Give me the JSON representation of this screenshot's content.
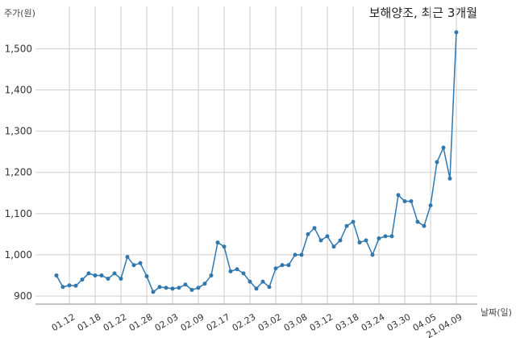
{
  "chart_data": {
    "type": "line",
    "title": "보해양조, 최근 3개월",
    "ylabel": "주가(원)",
    "xlabel": "날짜(일)",
    "ylim": [
      890,
      1580
    ],
    "yticks": [
      900,
      1000,
      1100,
      1200,
      1300,
      1400,
      1500
    ],
    "ytick_labels": [
      "900",
      "1,000",
      "1,100",
      "1,200",
      "1,300",
      "1,400",
      "1,500"
    ],
    "grid": true,
    "line_color": "#2f78b0",
    "xtick_labels": [
      "01.12",
      "01.18",
      "01.22",
      "01.28",
      "02.03",
      "02.09",
      "02.17",
      "02.23",
      "03.02",
      "03.08",
      "03.12",
      "03.18",
      "03.24",
      "03.30",
      "04.05",
      "21.04.09"
    ],
    "xtick_indices": [
      2,
      6,
      10,
      14,
      18,
      22,
      26,
      30,
      34,
      38,
      42,
      46,
      50,
      54,
      58,
      62
    ],
    "series": [
      {
        "values": [
          950,
          922,
          926,
          925,
          940,
          955,
          950,
          950,
          942,
          955,
          942,
          995,
          975,
          980,
          948,
          910,
          922,
          920,
          918,
          920,
          928,
          915,
          920,
          930,
          950,
          1030,
          1020,
          960,
          965,
          955,
          935,
          918,
          935,
          922,
          967,
          975,
          975,
          1000,
          1000,
          1050,
          1065,
          1035,
          1045,
          1020,
          1035,
          1070,
          1080,
          1030,
          1035,
          1000,
          1040,
          1045,
          1045,
          1145,
          1130,
          1130,
          1080,
          1070,
          1120,
          1225,
          1260,
          1185,
          1540
        ]
      }
    ]
  }
}
